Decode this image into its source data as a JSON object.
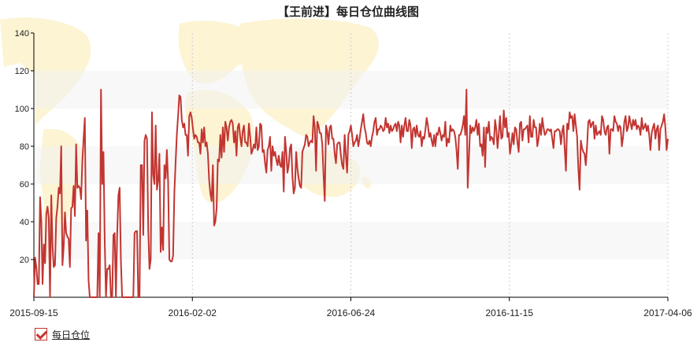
{
  "chart_data": {
    "type": "line",
    "title": "【王前进】每日仓位曲线图",
    "xlabel": "",
    "ylabel": "",
    "ylim": [
      0,
      140
    ],
    "yticks": [
      20,
      40,
      60,
      80,
      100,
      120,
      140
    ],
    "xtick_labels": [
      "2015-09-15",
      "2016-02-02",
      "2016-06-24",
      "2016-11-15",
      "2017-04-06"
    ],
    "grid": "horizontal bands",
    "legend_position": "bottom-left",
    "line_color": "#c23531",
    "x_start": "2015-09-15",
    "x_end": "2017-04-06",
    "series": [
      {
        "name": "每日仓位",
        "values": [
          0,
          21,
          16,
          7,
          7,
          53,
          40,
          7,
          28,
          18,
          44,
          48,
          42,
          0,
          54,
          27,
          16,
          17,
          42,
          48,
          58,
          55,
          80,
          17,
          27,
          45,
          34,
          32,
          31,
          16,
          47,
          48,
          59,
          43,
          81,
          58,
          59,
          58,
          52,
          72,
          84,
          95,
          30,
          46,
          9,
          0,
          0,
          0,
          0,
          0,
          0,
          0,
          34,
          0,
          110,
          60,
          77,
          30,
          0,
          15,
          15,
          17,
          0,
          0,
          33,
          34,
          0,
          33,
          54,
          58,
          20,
          0,
          0,
          0,
          0,
          0,
          0,
          0,
          0,
          0,
          0,
          34,
          35,
          35,
          0,
          0,
          70,
          70,
          33,
          83,
          86,
          84,
          36,
          15,
          20,
          98,
          65,
          60,
          91,
          57,
          62,
          76,
          24,
          37,
          25,
          70,
          63,
          78,
          61,
          20,
          19,
          19,
          22,
          55,
          71,
          86,
          96,
          107,
          106,
          94,
          90,
          92,
          86,
          86,
          75,
          96,
          98,
          95,
          89,
          84,
          86,
          85,
          82,
          82,
          76,
          89,
          82,
          90,
          80,
          82,
          76,
          62,
          55,
          51,
          70,
          38,
          40,
          47,
          73,
          72,
          86,
          74,
          90,
          77,
          93,
          90,
          83,
          90,
          93,
          94,
          92,
          82,
          88,
          75,
          90,
          92,
          85,
          80,
          88,
          91,
          82,
          82,
          80,
          92,
          85,
          76,
          78,
          81,
          79,
          90,
          78,
          80,
          92,
          91,
          77,
          78,
          71,
          66,
          78,
          80,
          85,
          67,
          80,
          75,
          77,
          73,
          70,
          75,
          70,
          69,
          77,
          56,
          85,
          77,
          66,
          70,
          79,
          81,
          64,
          55,
          58,
          77,
          68,
          63,
          59,
          58,
          77,
          79,
          81,
          86,
          85,
          80,
          82,
          83,
          82,
          96,
          90,
          67,
          93,
          91,
          87,
          87,
          81,
          65,
          51,
          91,
          88,
          81,
          90,
          91,
          84,
          84,
          76,
          71,
          81,
          82,
          82,
          75,
          70,
          68,
          86,
          75,
          66,
          86,
          88,
          91,
          86,
          80,
          82,
          83,
          86,
          80,
          84,
          89,
          93,
          97,
          90,
          87,
          82,
          81,
          83,
          80,
          85,
          88,
          93,
          95,
          86,
          89,
          89,
          91,
          90,
          88,
          89,
          95,
          90,
          92,
          87,
          91,
          88,
          89,
          91,
          92,
          88,
          93,
          91,
          82,
          91,
          85,
          91,
          95,
          88,
          88,
          94,
          91,
          79,
          89,
          90,
          85,
          91,
          86,
          85,
          88,
          80,
          85,
          84,
          89,
          95,
          91,
          85,
          87,
          83,
          80,
          86,
          80,
          87,
          86,
          90,
          87,
          83,
          86,
          85,
          93,
          80,
          84,
          82,
          91,
          88,
          89,
          88,
          85,
          78,
          68,
          86,
          86,
          88,
          91,
          96,
          86,
          110,
          58,
          74,
          91,
          87,
          90,
          88,
          90,
          94,
          86,
          92,
          80,
          81,
          75,
          90,
          69,
          90,
          87,
          93,
          83,
          85,
          84,
          81,
          94,
          89,
          79,
          87,
          96,
          84,
          85,
          99,
          90,
          95,
          85,
          87,
          76,
          81,
          87,
          81,
          90,
          89,
          82,
          77,
          92,
          93,
          83,
          89,
          89,
          90,
          91,
          82,
          96,
          85,
          85,
          94,
          90,
          90,
          80,
          84,
          92,
          86,
          95,
          90,
          86,
          87,
          89,
          89,
          88,
          89,
          84,
          79,
          88,
          88,
          89,
          89,
          88,
          81,
          88,
          91,
          79,
          67,
          92,
          89,
          98,
          95,
          96,
          88,
          97,
          91,
          85,
          68,
          57,
          83,
          79,
          77,
          76,
          70,
          80,
          93,
          94,
          90,
          92,
          93,
          84,
          91,
          86,
          87,
          88,
          86,
          96,
          94,
          88,
          86,
          90,
          91,
          76,
          89,
          89,
          88,
          96,
          93,
          92,
          88,
          91,
          90,
          80,
          85,
          93,
          96,
          88,
          90,
          96,
          92,
          89,
          94,
          91,
          94,
          89,
          91,
          90,
          86,
          95,
          89,
          90,
          92,
          88,
          91,
          86,
          78,
          87,
          90,
          92,
          84,
          89,
          91,
          78,
          89,
          91,
          93,
          97,
          90,
          78,
          84
        ]
      }
    ]
  },
  "legend": {
    "label": "每日仓位"
  }
}
